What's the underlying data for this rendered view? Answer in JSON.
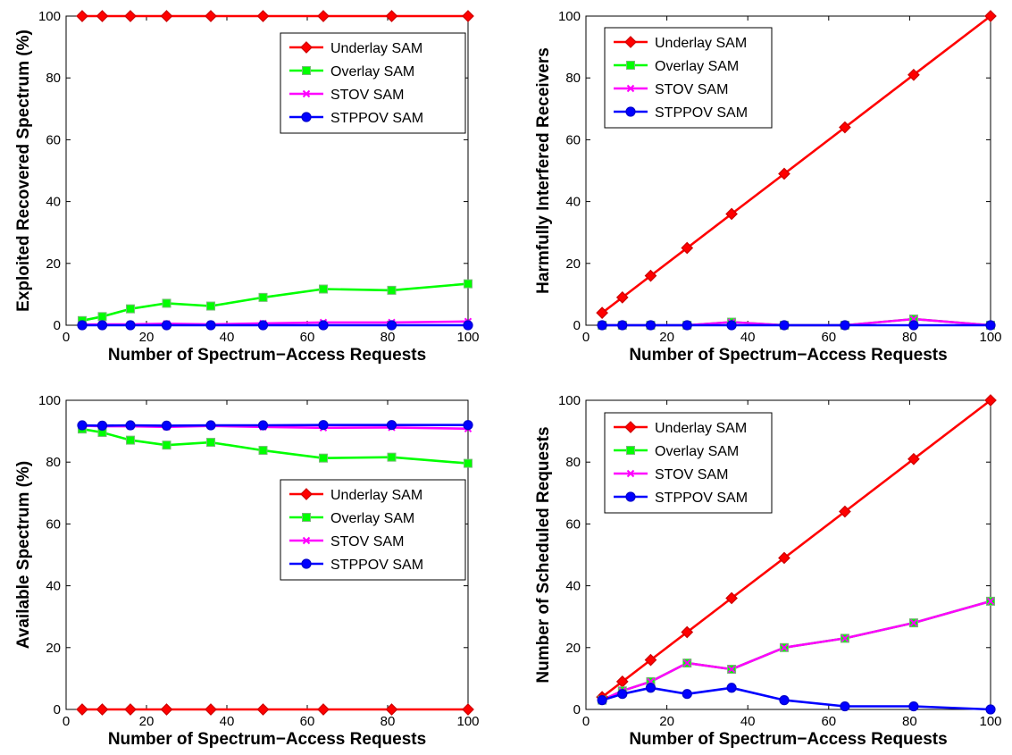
{
  "colors": {
    "underlay": "#ff0000",
    "overlay": "#00ff00",
    "stov": "#ff00ff",
    "stppov": "#0000ff",
    "marker_edge_underlay": "#cc0000",
    "marker_edge_overlay": "#77bb77",
    "marker_edge_stppov": "#0000cc"
  },
  "chart_data": [
    {
      "type": "line",
      "xlabel": "Number of Spectrum−Access Requests",
      "ylabel": "Exploited Recovered Spectrum (%)",
      "xlim": [
        0,
        100
      ],
      "ylim": [
        0,
        100
      ],
      "xticks": [
        "0",
        "20",
        "40",
        "60",
        "80",
        "100"
      ],
      "yticks": [
        "0",
        "20",
        "40",
        "60",
        "80",
        "100"
      ],
      "grid": false,
      "legend_position": "top-right",
      "x": [
        4,
        9,
        16,
        25,
        36,
        49,
        64,
        81,
        100
      ],
      "series": [
        {
          "name": "Underlay SAM",
          "marker": "diamond",
          "values": [
            100,
            100,
            100,
            100,
            100,
            100,
            100,
            100,
            100
          ]
        },
        {
          "name": "Overlay SAM",
          "marker": "square",
          "values": [
            1.5,
            2.8,
            5.3,
            7.1,
            6.2,
            9.0,
            11.7,
            11.3,
            13.4
          ]
        },
        {
          "name": "STOV SAM",
          "marker": "x",
          "values": [
            0.2,
            0.3,
            0.3,
            0.5,
            0.3,
            0.6,
            0.9,
            0.9,
            1.2
          ]
        },
        {
          "name": "STPPOV SAM",
          "marker": "circle",
          "values": [
            0,
            0,
            0,
            0,
            0,
            0,
            0,
            0,
            0
          ]
        }
      ]
    },
    {
      "type": "line",
      "xlabel": "Number of Spectrum−Access Requests",
      "ylabel": "Harmfully Interfered Receivers",
      "xlim": [
        0,
        100
      ],
      "ylim": [
        0,
        100
      ],
      "xticks": [
        "0",
        "20",
        "40",
        "60",
        "80",
        "100"
      ],
      "yticks": [
        "0",
        "20",
        "40",
        "60",
        "80",
        "100"
      ],
      "grid": false,
      "legend_position": "top-left",
      "x": [
        4,
        9,
        16,
        25,
        36,
        49,
        64,
        81,
        100
      ],
      "series": [
        {
          "name": "Underlay SAM",
          "marker": "diamond",
          "values": [
            4,
            9,
            16,
            25,
            36,
            49,
            64,
            81,
            100
          ]
        },
        {
          "name": "Overlay SAM",
          "marker": "square",
          "values": [
            0,
            0,
            0,
            0,
            1,
            0,
            0,
            2,
            0
          ]
        },
        {
          "name": "STOV SAM",
          "marker": "x",
          "values": [
            0,
            0,
            0,
            0,
            1,
            0,
            0,
            2,
            0
          ]
        },
        {
          "name": "STPPOV SAM",
          "marker": "circle",
          "values": [
            0,
            0,
            0,
            0,
            0,
            0,
            0,
            0,
            0
          ]
        }
      ]
    },
    {
      "type": "line",
      "xlabel": "Number of Spectrum−Access Requests",
      "ylabel": "Available Spectrum (%)",
      "xlim": [
        0,
        100
      ],
      "ylim": [
        0,
        100
      ],
      "xticks": [
        "0",
        "20",
        "40",
        "60",
        "80",
        "100"
      ],
      "yticks": [
        "0",
        "20",
        "40",
        "60",
        "80",
        "100"
      ],
      "grid": false,
      "legend_position": "center-right",
      "x": [
        4,
        9,
        16,
        25,
        36,
        49,
        64,
        81,
        100
      ],
      "series": [
        {
          "name": "Underlay SAM",
          "marker": "diamond",
          "values": [
            0,
            0,
            0,
            0,
            0,
            0,
            0,
            0,
            0
          ]
        },
        {
          "name": "Overlay SAM",
          "marker": "square",
          "values": [
            90.7,
            89.6,
            87.1,
            85.5,
            86.4,
            83.8,
            81.3,
            81.6,
            79.6
          ]
        },
        {
          "name": "STOV SAM",
          "marker": "x",
          "values": [
            91.8,
            91.6,
            91.6,
            91.4,
            91.7,
            91.4,
            91.1,
            91.2,
            90.8
          ]
        },
        {
          "name": "STPPOV SAM",
          "marker": "circle",
          "values": [
            91.9,
            91.8,
            91.9,
            91.8,
            91.9,
            91.9,
            92.0,
            92.0,
            92.0
          ]
        }
      ]
    },
    {
      "type": "line",
      "xlabel": "Number of Spectrum−Access Requests",
      "ylabel": "Number of Scheduled Requests",
      "xlim": [
        0,
        100
      ],
      "ylim": [
        0,
        100
      ],
      "xticks": [
        "0",
        "20",
        "40",
        "60",
        "80",
        "100"
      ],
      "yticks": [
        "0",
        "20",
        "40",
        "60",
        "80",
        "100"
      ],
      "grid": false,
      "legend_position": "top-left",
      "x": [
        4,
        9,
        16,
        25,
        36,
        49,
        64,
        81,
        100
      ],
      "series": [
        {
          "name": "Underlay SAM",
          "marker": "diamond",
          "values": [
            4,
            9,
            16,
            25,
            36,
            49,
            64,
            81,
            100
          ]
        },
        {
          "name": "Overlay SAM",
          "marker": "square",
          "values": [
            3,
            6,
            9,
            15,
            13,
            20,
            23,
            28,
            35
          ]
        },
        {
          "name": "STOV SAM",
          "marker": "x",
          "values": [
            3,
            6,
            9,
            15,
            13,
            20,
            23,
            28,
            35
          ]
        },
        {
          "name": "STPPOV SAM",
          "marker": "circle",
          "values": [
            3,
            5,
            7,
            5,
            7,
            3,
            1,
            1,
            0
          ]
        }
      ]
    }
  ]
}
